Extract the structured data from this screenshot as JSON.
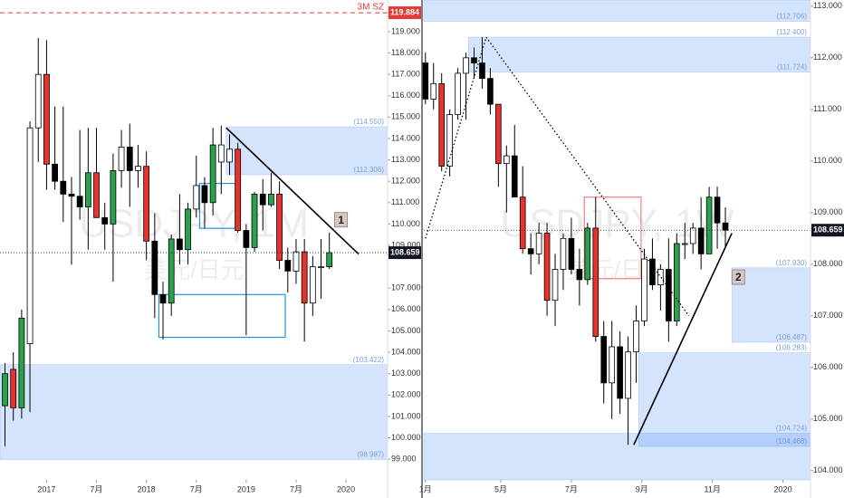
{
  "chart_data": [
    {
      "type": "candlestick",
      "x": [
        -5,
        -4,
        -3,
        -2,
        -1,
        0,
        1,
        2,
        3,
        4,
        5,
        6,
        7,
        8,
        9,
        10,
        11,
        12,
        13,
        14,
        15,
        16,
        17,
        18,
        19,
        20,
        21,
        22,
        23,
        24,
        25,
        26,
        27,
        28,
        29,
        30,
        31,
        32,
        33,
        34
      ],
      "open": [
        101.5,
        103.2,
        101.4,
        104.4,
        114.5,
        117.0,
        112.8,
        112.0,
        111.4,
        111.3,
        110.8,
        112.4,
        110.3,
        110.0,
        112.5,
        113.6,
        112.5,
        112.7,
        109.2,
        106.7,
        106.3,
        109.3,
        108.8,
        110.7,
        111.8,
        111.0,
        113.7,
        112.9,
        113.5,
        109.7,
        108.9,
        111.4,
        110.9,
        111.4,
        108.3,
        107.8,
        108.7,
        106.3,
        108.0,
        108.0
      ],
      "high": [
        103.5,
        104.0,
        106.0,
        114.8,
        118.7,
        118.6,
        115.5,
        115.5,
        112.2,
        114.4,
        114.5,
        114.5,
        111.0,
        113.3,
        114.4,
        114.7,
        113.7,
        113.4,
        110.5,
        107.3,
        109.5,
        111.4,
        111.0,
        113.2,
        112.2,
        114.5,
        114.6,
        114.2,
        113.8,
        110.0,
        111.5,
        112.1,
        112.4,
        112.0,
        108.9,
        109.3,
        109.3,
        108.5,
        109.3,
        109.6
      ],
      "low": [
        99.6,
        100.8,
        100.9,
        101.2,
        112.9,
        111.6,
        111.6,
        110.1,
        108.1,
        110.2,
        108.8,
        110.3,
        108.8,
        107.3,
        111.7,
        110.8,
        111.7,
        108.3,
        105.6,
        104.6,
        105.7,
        108.1,
        108.1,
        110.3,
        109.8,
        110.4,
        111.4,
        112.3,
        109.6,
        104.8,
        108.7,
        109.7,
        110.8,
        107.9,
        106.8,
        107.2,
        104.5,
        105.7,
        106.5,
        107.9
      ],
      "close": [
        103.0,
        101.4,
        105.6,
        114.5,
        117.0,
        112.8,
        112.0,
        111.4,
        111.3,
        110.8,
        112.4,
        110.3,
        110.0,
        112.5,
        113.6,
        112.5,
        112.7,
        109.2,
        106.7,
        106.3,
        109.3,
        108.8,
        110.7,
        111.8,
        111.0,
        113.7,
        112.9,
        113.5,
        109.7,
        108.9,
        111.4,
        110.9,
        111.4,
        108.3,
        107.8,
        108.7,
        106.3,
        108.0,
        108.0,
        108.66
      ],
      "candle_colors": [
        "#2aa14a",
        "#e8322b",
        "#2aa14a",
        "#ffffff",
        "#ffffff",
        "#e8322b",
        "#000000",
        "#000000",
        "#000000",
        "#000000",
        "#2aa14a",
        "#e8322b",
        "#000000",
        "#2aa14a",
        "#ffffff",
        "#000000",
        "#ffffff",
        "#e8322b",
        "#000000",
        "#000000",
        "#2aa14a",
        "#000000",
        "#2aa14a",
        "#ffffff",
        "#000000",
        "#2aa14a",
        "#ffffff",
        "#ffffff",
        "#e8322b",
        "#000000",
        "#2aa14a",
        "#000000",
        "#2aa14a",
        "#e8322b",
        "#000000",
        "#ffffff",
        "#e8322b",
        "#ffffff",
        "#ffffff",
        "#2aa14a"
      ],
      "xlim": [
        -5.6,
        41
      ],
      "xticks": [
        {
          "value": 0,
          "label": "2017"
        },
        {
          "value": 6,
          "label": "7月"
        },
        {
          "value": 12,
          "label": "2018"
        },
        {
          "value": 18,
          "label": "7月"
        },
        {
          "value": 24,
          "label": "2019"
        },
        {
          "value": 30,
          "label": "7月"
        },
        {
          "value": 36,
          "label": "2020"
        }
      ],
      "ylim": [
        98.03,
        120.48
      ],
      "yticks": [
        {
          "value": 99,
          "label": "99.000"
        },
        {
          "value": 100,
          "label": "100.000"
        },
        {
          "value": 101,
          "label": "101.000"
        },
        {
          "value": 102,
          "label": "102.000"
        },
        {
          "value": 103,
          "label": "103.000"
        },
        {
          "value": 104,
          "label": "104.000"
        },
        {
          "value": 105,
          "label": "105.000"
        },
        {
          "value": 106,
          "label": "106.000"
        },
        {
          "value": 107,
          "label": "107.000"
        },
        {
          "value": 109,
          "label": "109.000"
        },
        {
          "value": 110,
          "label": "110.000"
        },
        {
          "value": 111,
          "label": "111.000"
        },
        {
          "value": 112,
          "label": "112.000"
        },
        {
          "value": 113,
          "label": "113.000"
        },
        {
          "value": 114,
          "label": "114.000"
        },
        {
          "value": 115,
          "label": "115.000"
        },
        {
          "value": 116,
          "label": "116.000"
        },
        {
          "value": 117,
          "label": "117.000"
        },
        {
          "value": 118,
          "label": "118.000"
        },
        {
          "value": 119,
          "label": "119.000"
        }
      ],
      "price_line": {
        "value": 108.659,
        "label": "108.659"
      },
      "ref_line": {
        "value": 119.884,
        "label": "119.884",
        "name": "3M SZ",
        "color": "#e53935"
      },
      "watermark": [
        "USDJPY, 1M",
        "美元/日元"
      ],
      "zones": [
        {
          "top": 114.55,
          "bottom": 112.306,
          "x0": 21.6,
          "top_label": "(114.550)",
          "bottom_label": "(112.306)"
        },
        {
          "top": 103.422,
          "bottom": 98.987,
          "x0": -5.6,
          "top_label": "(103.422)",
          "bottom_label": "(98.987)"
        }
      ],
      "boxes": [
        {
          "x0": 18.4,
          "x1": 22.7,
          "top": 111.9,
          "bottom": 109.8,
          "color": "#2b8fd6"
        },
        {
          "x0": 13.5,
          "x1": 28.7,
          "top": 106.7,
          "bottom": 104.7,
          "color": "#2b8fd6"
        }
      ],
      "lines": [
        {
          "x": [
            21.6,
            37.5
          ],
          "y": [
            114.5,
            108.6
          ],
          "style": "solid"
        }
      ],
      "markers": [
        {
          "label": "1",
          "x": 35.4,
          "y": 110.2
        }
      ]
    },
    {
      "type": "candlestick",
      "x": [
        8,
        9,
        10,
        11,
        12,
        13,
        14,
        15,
        16,
        17,
        18,
        19,
        20,
        21,
        22,
        23,
        24,
        25,
        26,
        27,
        28,
        29,
        30,
        31,
        32,
        33,
        34,
        35,
        36,
        37,
        38,
        39,
        40,
        41,
        42,
        43,
        44,
        45
      ],
      "open": [
        111.9,
        111.2,
        111.5,
        109.9,
        110.9,
        111.7,
        112.0,
        111.9,
        111.6,
        111.1,
        109.95,
        110.1,
        109.3,
        108.3,
        108.2,
        108.6,
        107.3,
        107.9,
        108.5,
        107.9,
        107.7,
        108.7,
        106.6,
        105.7,
        106.4,
        105.4,
        106.3,
        106.9,
        108.1,
        107.6,
        107.9,
        106.9,
        108.4,
        108.4,
        108.7,
        108.2,
        109.3,
        108.8
      ],
      "high": [
        112.1,
        111.9,
        111.7,
        111.0,
        111.8,
        112.1,
        112.2,
        112.4,
        111.8,
        111.1,
        110.3,
        110.7,
        109.9,
        108.6,
        108.8,
        108.8,
        108.2,
        108.6,
        108.9,
        108.3,
        108.8,
        109.3,
        106.9,
        106.9,
        106.7,
        106.6,
        107.2,
        108.3,
        108.5,
        108.0,
        108.5,
        108.6,
        108.8,
        108.8,
        109.3,
        109.5,
        109.5,
        109.1
      ],
      "low": [
        111.1,
        111.0,
        109.8,
        109.7,
        110.8,
        110.8,
        111.6,
        111.4,
        110.9,
        109.5,
        109.0,
        109.3,
        108.2,
        107.8,
        108.0,
        107.0,
        106.8,
        107.5,
        107.8,
        107.2,
        107.6,
        106.5,
        105.3,
        105.0,
        105.1,
        104.5,
        105.7,
        106.8,
        107.5,
        107.1,
        106.5,
        106.8,
        108.1,
        108.2,
        107.9,
        108.2,
        108.3,
        108.3
      ],
      "close": [
        111.2,
        111.5,
        109.9,
        110.9,
        111.7,
        112.0,
        111.9,
        111.6,
        111.1,
        109.95,
        110.1,
        109.3,
        108.3,
        108.2,
        108.6,
        107.3,
        107.9,
        108.5,
        107.9,
        107.7,
        108.7,
        106.6,
        105.7,
        106.4,
        105.4,
        106.3,
        106.9,
        108.1,
        107.6,
        107.9,
        106.9,
        108.4,
        108.4,
        108.7,
        108.2,
        109.3,
        108.8,
        108.66
      ],
      "candle_colors": [
        "#000000",
        "#ffffff",
        "#e8322b",
        "#ffffff",
        "#ffffff",
        "#ffffff",
        "#000000",
        "#000000",
        "#000000",
        "#e8322b",
        "#ffffff",
        "#000000",
        "#e8322b",
        "#000000",
        "#ffffff",
        "#e8322b",
        "#ffffff",
        "#ffffff",
        "#000000",
        "#000000",
        "#2aa14a",
        "#e8322b",
        "#000000",
        "#ffffff",
        "#000000",
        "#ffffff",
        "#ffffff",
        "#ffffff",
        "#000000",
        "#ffffff",
        "#000000",
        "#2aa14a",
        "#ffffff",
        "#ffffff",
        "#000000",
        "#2aa14a",
        "#000000",
        "#000000"
      ],
      "xlim": [
        7.8,
        55.5
      ],
      "xticks": [
        {
          "value": 8,
          "label": "1月"
        },
        {
          "value": 17.3,
          "label": "5月"
        },
        {
          "value": 26,
          "label": "7月"
        },
        {
          "value": 34.7,
          "label": "9月"
        },
        {
          "value": 43.4,
          "label": "11月"
        },
        {
          "value": 52.1,
          "label": "2020"
        }
      ],
      "ylim": [
        103.82,
        113.12
      ],
      "yticks": [
        {
          "value": 104,
          "label": "104.000"
        },
        {
          "value": 105,
          "label": "105.000"
        },
        {
          "value": 106,
          "label": "106.000"
        },
        {
          "value": 107,
          "label": "107.000"
        },
        {
          "value": 108,
          "label": "108.000"
        },
        {
          "value": 109,
          "label": "109.000"
        },
        {
          "value": 110,
          "label": "110.000"
        },
        {
          "value": 111,
          "label": "111.000"
        },
        {
          "value": 112,
          "label": "112.000"
        },
        {
          "value": 113,
          "label": "113.000"
        }
      ],
      "price_line": {
        "value": 108.659,
        "label": "108.659"
      },
      "watermark": [
        "USDJPY, 1W",
        "美元/日元"
      ],
      "zones": [
        {
          "bottom": 112.706,
          "x0": 7.8,
          "bottom_label": "(112.706)"
        },
        {
          "top": 112.4,
          "bottom": 111.724,
          "x0": 13.3,
          "top_label": "(112.400)",
          "bottom_label": "(111.724)"
        },
        {
          "top": 107.93,
          "bottom": 106.487,
          "x0": 45.8,
          "top_label": "(107.930)",
          "bottom_label": "(106.487)"
        },
        {
          "top": 106.283,
          "bottom": 104.468,
          "x0": 34.3,
          "top_label": "(106.283)",
          "bottom_label": "(104.468)"
        },
        {
          "top": 104.724,
          "x0": 7.8,
          "top_label": "(104.724)"
        }
      ],
      "boxes": [
        {
          "x0": 27.6,
          "x1": 34.6,
          "top": 109.3,
          "bottom": 107.72,
          "color": "#f08080"
        }
      ],
      "lines": [
        {
          "x": [
            8,
            15.5
          ],
          "y": [
            108.5,
            112.4
          ],
          "style": "dotted"
        },
        {
          "x": [
            15.5,
            40.5
          ],
          "y": [
            112.4,
            107.0
          ],
          "style": "dotted"
        },
        {
          "x": [
            33.7,
            45.8
          ],
          "y": [
            104.5,
            108.6
          ],
          "style": "solid"
        }
      ],
      "markers": [
        {
          "label": "2",
          "x": 46.6,
          "y": 107.75
        }
      ]
    }
  ]
}
